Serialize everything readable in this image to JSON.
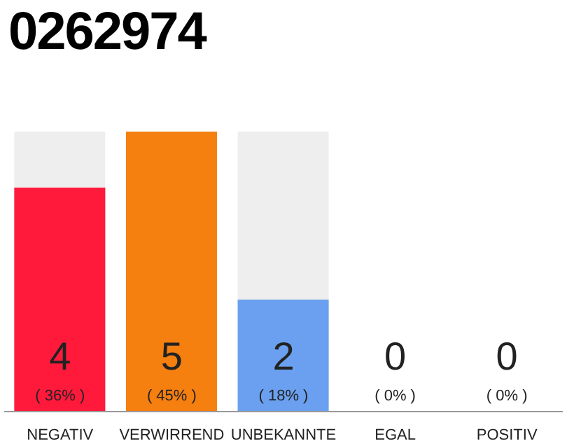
{
  "chart_data": {
    "type": "bar",
    "title": "0262974",
    "categories": [
      "NEGATIV",
      "VERWIRREND",
      "UNBEKANNTE",
      "EGAL",
      "POSITIV"
    ],
    "values": [
      36,
      45,
      18,
      0,
      0
    ],
    "colors": [
      "#ff1a3c",
      "#f57f0f",
      "#6aa0ef",
      "#e0e0e0",
      "#e0e0e0"
    ],
    "value_labels": [
      "4\n( 36% )",
      "5\n( 45% )",
      "2\n( 18% )",
      "0\n( 0% )",
      "0\n( 0% )"
    ],
    "grid": false,
    "legend": false
  }
}
